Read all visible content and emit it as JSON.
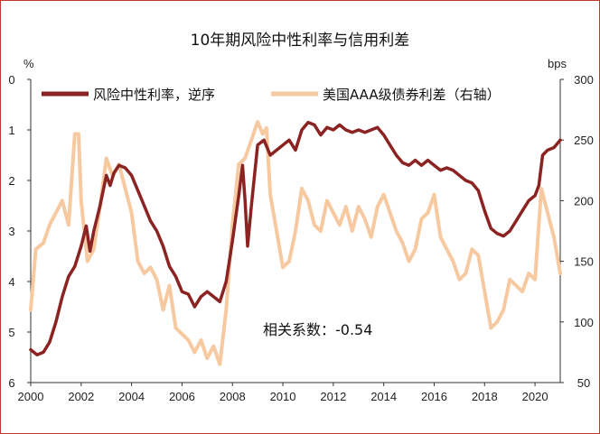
{
  "chart_data": {
    "type": "line",
    "title": "10年期风险中性利率与信用利差",
    "left_unit": "%",
    "right_unit": "bps",
    "annotation": "相关系数：-0.54",
    "x_range": [
      2000,
      2021
    ],
    "x_ticks": [
      "2000",
      "2002",
      "2004",
      "2006",
      "2008",
      "2010",
      "2012",
      "2014",
      "2016",
      "2018",
      "2020"
    ],
    "y_left": {
      "range": [
        0,
        6
      ],
      "inverted": true,
      "ticks": [
        "0",
        "1",
        "2",
        "3",
        "4",
        "5",
        "6"
      ]
    },
    "y_right": {
      "range": [
        50,
        300
      ],
      "ticks": [
        "300",
        "250",
        "200",
        "150",
        "100",
        "50"
      ]
    },
    "legend_position": "top",
    "series": [
      {
        "name": "风险中性利率，逆序",
        "axis": "left",
        "color": "#8b2322",
        "points": [
          [
            2000.0,
            5.35
          ],
          [
            2000.25,
            5.45
          ],
          [
            2000.5,
            5.4
          ],
          [
            2000.75,
            5.2
          ],
          [
            2001.0,
            4.8
          ],
          [
            2001.25,
            4.3
          ],
          [
            2001.5,
            3.9
          ],
          [
            2001.75,
            3.7
          ],
          [
            2002.0,
            3.3
          ],
          [
            2002.2,
            2.9
          ],
          [
            2002.35,
            3.4
          ],
          [
            2002.5,
            3.0
          ],
          [
            2002.75,
            2.5
          ],
          [
            2003.0,
            1.9
          ],
          [
            2003.15,
            2.1
          ],
          [
            2003.3,
            1.85
          ],
          [
            2003.5,
            1.7
          ],
          [
            2003.75,
            1.75
          ],
          [
            2004.0,
            1.9
          ],
          [
            2004.25,
            2.2
          ],
          [
            2004.5,
            2.5
          ],
          [
            2004.75,
            2.8
          ],
          [
            2005.0,
            3.0
          ],
          [
            2005.25,
            3.3
          ],
          [
            2005.5,
            3.7
          ],
          [
            2005.75,
            3.9
          ],
          [
            2006.0,
            4.2
          ],
          [
            2006.25,
            4.25
          ],
          [
            2006.5,
            4.5
          ],
          [
            2006.75,
            4.3
          ],
          [
            2007.0,
            4.2
          ],
          [
            2007.25,
            4.3
          ],
          [
            2007.5,
            4.4
          ],
          [
            2007.75,
            4.0
          ],
          [
            2008.0,
            3.2
          ],
          [
            2008.25,
            2.3
          ],
          [
            2008.4,
            1.7
          ],
          [
            2008.5,
            2.4
          ],
          [
            2008.6,
            3.3
          ],
          [
            2008.75,
            2.5
          ],
          [
            2009.0,
            1.3
          ],
          [
            2009.25,
            1.2
          ],
          [
            2009.5,
            1.5
          ],
          [
            2009.75,
            1.4
          ],
          [
            2010.0,
            1.3
          ],
          [
            2010.25,
            1.2
          ],
          [
            2010.5,
            1.4
          ],
          [
            2010.75,
            1.0
          ],
          [
            2011.0,
            0.85
          ],
          [
            2011.25,
            0.9
          ],
          [
            2011.5,
            1.1
          ],
          [
            2011.75,
            0.95
          ],
          [
            2012.0,
            1.0
          ],
          [
            2012.25,
            0.9
          ],
          [
            2012.5,
            1.0
          ],
          [
            2012.75,
            1.05
          ],
          [
            2013.0,
            1.0
          ],
          [
            2013.25,
            1.05
          ],
          [
            2013.5,
            1.0
          ],
          [
            2013.75,
            0.95
          ],
          [
            2014.0,
            1.1
          ],
          [
            2014.25,
            1.3
          ],
          [
            2014.5,
            1.5
          ],
          [
            2014.75,
            1.65
          ],
          [
            2015.0,
            1.7
          ],
          [
            2015.25,
            1.6
          ],
          [
            2015.5,
            1.7
          ],
          [
            2015.75,
            1.6
          ],
          [
            2016.0,
            1.7
          ],
          [
            2016.25,
            1.8
          ],
          [
            2016.5,
            1.75
          ],
          [
            2016.75,
            1.8
          ],
          [
            2017.0,
            1.9
          ],
          [
            2017.25,
            2.0
          ],
          [
            2017.5,
            2.05
          ],
          [
            2017.75,
            2.2
          ],
          [
            2018.0,
            2.6
          ],
          [
            2018.25,
            2.95
          ],
          [
            2018.5,
            3.05
          ],
          [
            2018.75,
            3.1
          ],
          [
            2019.0,
            3.0
          ],
          [
            2019.25,
            2.8
          ],
          [
            2019.5,
            2.6
          ],
          [
            2019.75,
            2.4
          ],
          [
            2020.0,
            2.3
          ],
          [
            2020.15,
            2.1
          ],
          [
            2020.3,
            1.5
          ],
          [
            2020.5,
            1.4
          ],
          [
            2020.75,
            1.35
          ],
          [
            2021.0,
            1.2
          ]
        ]
      },
      {
        "name": "美国AAA级债券利差（右轴）",
        "axis": "right",
        "color": "#f7c9a0",
        "points": [
          [
            2000.0,
            110
          ],
          [
            2000.2,
            160
          ],
          [
            2000.5,
            165
          ],
          [
            2000.75,
            180
          ],
          [
            2001.0,
            190
          ],
          [
            2001.25,
            200
          ],
          [
            2001.5,
            180
          ],
          [
            2001.75,
            255
          ],
          [
            2001.9,
            255
          ],
          [
            2002.0,
            200
          ],
          [
            2002.25,
            150
          ],
          [
            2002.5,
            160
          ],
          [
            2002.75,
            195
          ],
          [
            2003.0,
            235
          ],
          [
            2003.25,
            220
          ],
          [
            2003.5,
            230
          ],
          [
            2003.75,
            210
          ],
          [
            2004.0,
            190
          ],
          [
            2004.25,
            150
          ],
          [
            2004.5,
            140
          ],
          [
            2004.75,
            145
          ],
          [
            2005.0,
            135
          ],
          [
            2005.25,
            110
          ],
          [
            2005.5,
            130
          ],
          [
            2005.75,
            95
          ],
          [
            2006.0,
            90
          ],
          [
            2006.25,
            85
          ],
          [
            2006.5,
            75
          ],
          [
            2006.75,
            85
          ],
          [
            2007.0,
            70
          ],
          [
            2007.25,
            80
          ],
          [
            2007.5,
            65
          ],
          [
            2007.75,
            110
          ],
          [
            2008.0,
            180
          ],
          [
            2008.25,
            230
          ],
          [
            2008.5,
            235
          ],
          [
            2008.75,
            250
          ],
          [
            2009.0,
            265
          ],
          [
            2009.2,
            255
          ],
          [
            2009.35,
            260
          ],
          [
            2009.5,
            205
          ],
          [
            2009.75,
            175
          ],
          [
            2010.0,
            145
          ],
          [
            2010.25,
            150
          ],
          [
            2010.5,
            175
          ],
          [
            2010.75,
            210
          ],
          [
            2011.0,
            200
          ],
          [
            2011.25,
            180
          ],
          [
            2011.5,
            175
          ],
          [
            2011.75,
            200
          ],
          [
            2012.0,
            190
          ],
          [
            2012.25,
            180
          ],
          [
            2012.5,
            195
          ],
          [
            2012.75,
            175
          ],
          [
            2013.0,
            195
          ],
          [
            2013.25,
            185
          ],
          [
            2013.5,
            170
          ],
          [
            2013.75,
            195
          ],
          [
            2014.0,
            205
          ],
          [
            2014.25,
            190
          ],
          [
            2014.5,
            175
          ],
          [
            2014.75,
            165
          ],
          [
            2015.0,
            150
          ],
          [
            2015.25,
            160
          ],
          [
            2015.5,
            185
          ],
          [
            2015.75,
            190
          ],
          [
            2016.0,
            205
          ],
          [
            2016.25,
            170
          ],
          [
            2016.5,
            160
          ],
          [
            2016.75,
            150
          ],
          [
            2017.0,
            135
          ],
          [
            2017.25,
            140
          ],
          [
            2017.5,
            160
          ],
          [
            2017.75,
            155
          ],
          [
            2018.0,
            125
          ],
          [
            2018.25,
            95
          ],
          [
            2018.5,
            100
          ],
          [
            2018.75,
            110
          ],
          [
            2019.0,
            135
          ],
          [
            2019.25,
            130
          ],
          [
            2019.5,
            125
          ],
          [
            2019.75,
            140
          ],
          [
            2020.0,
            135
          ],
          [
            2020.25,
            210
          ],
          [
            2020.5,
            190
          ],
          [
            2020.75,
            170
          ],
          [
            2021.0,
            140
          ]
        ]
      }
    ]
  }
}
